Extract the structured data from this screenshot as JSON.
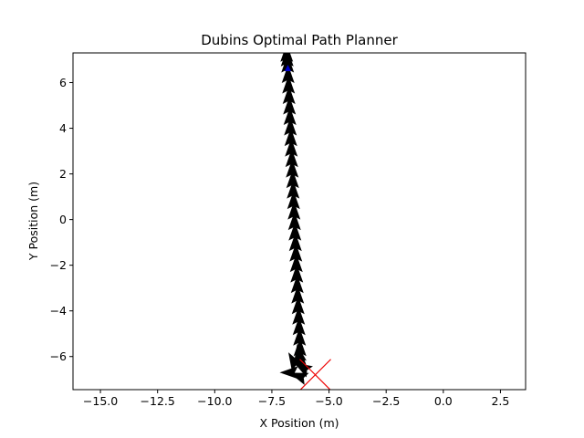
{
  "chart_data": {
    "type": "scatter",
    "title": "Dubins Optimal Path Planner",
    "xlabel": "X Position (m)",
    "ylabel": "Y Position (m)",
    "xlim": [
      -16.2,
      3.6
    ],
    "ylim": [
      -7.45,
      7.3
    ],
    "grid": false,
    "xticks": [
      -15.0,
      -12.5,
      -10.0,
      -7.5,
      -5.0,
      -2.5,
      0.0,
      2.5
    ],
    "xtick_labels": [
      "−15.0",
      "−12.5",
      "−10.0",
      "−7.5",
      "−5.0",
      "−2.5",
      "0.0",
      "2.5"
    ],
    "yticks": [
      -6,
      -4,
      -2,
      0,
      2,
      4,
      6
    ],
    "ytick_labels": [
      "−6",
      "−4",
      "−2",
      "0",
      "2",
      "4",
      "6"
    ],
    "series": [
      {
        "type": "arrows",
        "color": "#000000",
        "heading_deg": 90,
        "x": [
          -6.25,
          -6.27,
          -6.29,
          -6.31,
          -6.33,
          -6.35,
          -6.37,
          -6.39,
          -6.41,
          -6.43,
          -6.45,
          -6.47,
          -6.49,
          -6.51,
          -6.53,
          -6.55,
          -6.57,
          -6.59,
          -6.61,
          -6.63,
          -6.65,
          -6.67,
          -6.69,
          -6.71,
          -6.73,
          -6.75,
          -6.77,
          -6.79,
          -6.81,
          -6.83,
          -6.85
        ],
        "y": [
          -6.2,
          -5.74,
          -5.28,
          -4.82,
          -4.36,
          -3.9,
          -3.44,
          -2.98,
          -2.52,
          -2.06,
          -1.6,
          -1.14,
          -0.68,
          -0.22,
          0.24,
          0.7,
          1.16,
          1.62,
          2.08,
          2.54,
          3.0,
          3.46,
          3.92,
          4.38,
          4.84,
          5.3,
          5.76,
          6.22,
          6.68,
          6.95,
          7.15
        ]
      },
      {
        "type": "arrows",
        "color": "#000000",
        "x": [
          -6.6,
          -6.2,
          -6.05,
          -6.5,
          -6.3
        ],
        "y": [
          -6.7,
          -6.9,
          -6.55,
          -6.3,
          -6.0
        ],
        "heading_deg": [
          180,
          160,
          150,
          120,
          100
        ]
      },
      {
        "type": "marker",
        "marker": "triangle",
        "color": "#0000cc",
        "x": [
          -6.8
        ],
        "y": [
          6.62
        ]
      },
      {
        "type": "marker",
        "marker": "x",
        "color": "#ee0000",
        "x": [
          -5.6
        ],
        "y": [
          -6.8
        ]
      }
    ]
  }
}
